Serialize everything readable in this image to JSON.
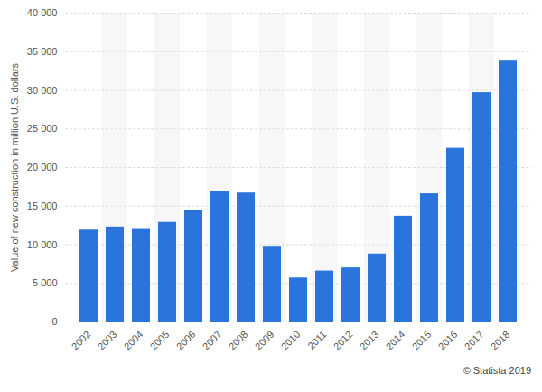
{
  "chart_data": {
    "type": "bar",
    "caption": "© Statista 2019",
    "y_label": "Value of new construction in million U.S. dollars",
    "categories": [
      "2002",
      "2003",
      "2004",
      "2005",
      "2006",
      "2007",
      "2008",
      "2009",
      "2010",
      "2011",
      "2012",
      "2013",
      "2014",
      "2015",
      "2016",
      "2017",
      "2018"
    ],
    "values": [
      11900,
      12300,
      12100,
      12900,
      14500,
      16900,
      16700,
      9800,
      5700,
      6600,
      7000,
      8800,
      13700,
      16600,
      22500,
      29700,
      33900
    ],
    "color": "#2a74dc",
    "ylim": [
      0,
      40000
    ],
    "yticks": [
      0,
      {
        "value": 5000,
        "label": "5 000"
      },
      {
        "value": 10000,
        "label": "10 000"
      },
      {
        "value": 15000,
        "label": "15 000"
      },
      {
        "value": 20000,
        "label": "20 000"
      },
      {
        "value": 25000,
        "label": "25 000"
      },
      {
        "value": 30000,
        "label": "30 000"
      },
      {
        "value": 35000,
        "label": "35 000"
      },
      {
        "value": 40000,
        "label": "40 000"
      }
    ],
    "grid": true
  }
}
